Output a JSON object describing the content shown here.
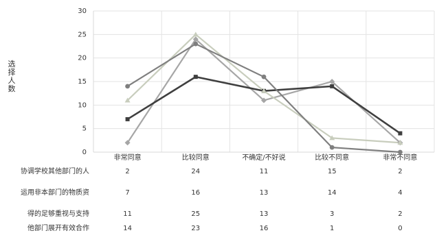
{
  "chart_data": {
    "type": "line",
    "categories": [
      "非常同意",
      "比较同意",
      "不确定/不好说",
      "比较不同意",
      "非常不同意"
    ],
    "series": [
      {
        "name": "协调学校其他部门的人",
        "values": [
          2,
          24,
          11,
          15,
          2
        ],
        "color": "#a6a6a6",
        "marker": "diamond"
      },
      {
        "name": "运用非本部门的物质资",
        "values": [
          7,
          16,
          13,
          14,
          4
        ],
        "color": "#3f3f3f",
        "marker": "square"
      },
      {
        "name": "得的足够重视与支持",
        "values": [
          11,
          25,
          13,
          3,
          2
        ],
        "color": "#c8cdbd",
        "marker": "triangle"
      },
      {
        "name": "他部门展开有效合作",
        "values": [
          14,
          23,
          16,
          1,
          0
        ],
        "color": "#7f7f7f",
        "marker": "circle"
      }
    ],
    "title": "",
    "xlabel": "",
    "ylabel": "选择人数",
    "ylim": [
      0,
      30
    ],
    "yticks": [
      0,
      5,
      10,
      15,
      20,
      25,
      30
    ],
    "grid": "vertical and horizontal light gray",
    "legend_placement": "table-left"
  },
  "colors": {
    "grid": "#e3e3e3",
    "axis": "#d9d9d9",
    "text": "#333333"
  }
}
